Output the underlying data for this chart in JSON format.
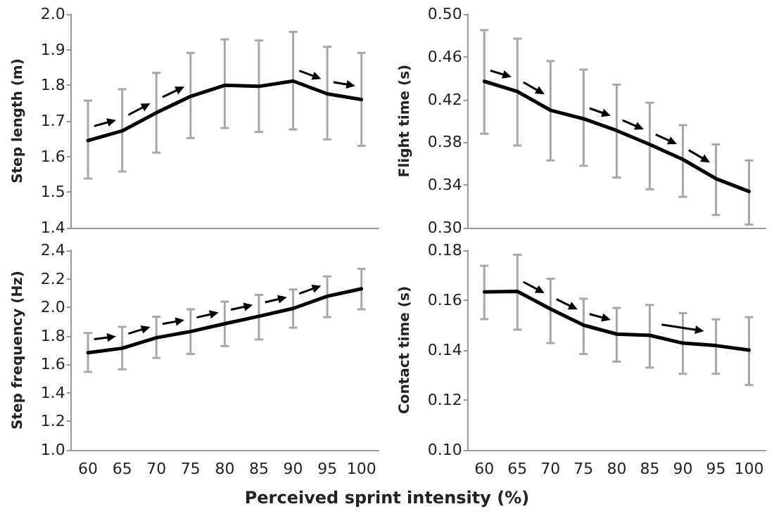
{
  "chart_data": [
    {
      "type": "line",
      "ylabel": "Step length (m)",
      "categories": [
        "60",
        "65",
        "70",
        "75",
        "80",
        "85",
        "90",
        "95",
        "100"
      ],
      "series": [
        {
          "color": "#000000",
          "values": [
            1.645,
            1.672,
            1.723,
            1.769,
            1.8,
            1.797,
            1.812,
            1.776,
            1.76
          ],
          "errors": [
            [
              1.538,
              1.757
            ],
            [
              1.558,
              1.789
            ],
            [
              1.611,
              1.835
            ],
            [
              1.652,
              1.891
            ],
            [
              1.68,
              1.929
            ],
            [
              1.669,
              1.926
            ],
            [
              1.676,
              1.95
            ],
            [
              1.648,
              1.908
            ],
            [
              1.63,
              1.891
            ]
          ]
        }
      ],
      "ylim": [
        1.4,
        2.0
      ],
      "yticks": [
        1.4,
        1.5,
        1.6,
        1.7,
        1.8,
        1.9,
        {
          "value": 2,
          "label": "2.0"
        }
      ],
      "tick_labels": "y",
      "marker": "none",
      "line_style": "solid"
    },
    {
      "type": "line",
      "ylabel": "Flight time (s)",
      "categories": [
        "60",
        "65",
        "70",
        "75",
        "80",
        "85",
        "90",
        "95",
        "100"
      ],
      "series": [
        {
          "color": "#000000",
          "values": [
            0.437,
            0.4275,
            0.41,
            0.402,
            0.391,
            0.378,
            0.364,
            0.346,
            0.334
          ],
          "errors": [
            [
              0.388,
              0.485
            ],
            [
              0.377,
              0.477
            ],
            [
              0.363,
              0.456
            ],
            [
              0.358,
              0.448
            ],
            [
              0.347,
              0.434
            ],
            [
              0.336,
              0.417
            ],
            [
              0.329,
              0.396
            ],
            [
              0.312,
              0.378
            ],
            [
              0.303,
              0.363
            ]
          ]
        }
      ],
      "ylim": [
        0.3,
        0.5
      ],
      "yticks": [
        {
          "value": 0.3,
          "label": "0.30"
        },
        0.34,
        0.38,
        0.42,
        0.46,
        {
          "value": 0.5,
          "label": "0.50"
        }
      ],
      "tick_labels": "y",
      "marker": "none",
      "line_style": "solid"
    },
    {
      "type": "line",
      "ylabel": "Step frequency (Hz)",
      "xlabel": "Perceived sprint intensity (%)",
      "categories": [
        "60",
        "65",
        "70",
        "75",
        "80",
        "85",
        "90",
        "95",
        "100"
      ],
      "series": [
        {
          "color": "#000000",
          "values": [
            1.682,
            1.713,
            1.787,
            1.83,
            1.885,
            1.937,
            1.992,
            2.078,
            2.13
          ],
          "errors": [
            [
              1.547,
              1.82
            ],
            [
              1.565,
              1.863
            ],
            [
              1.645,
              1.934
            ],
            [
              1.673,
              1.986
            ],
            [
              1.728,
              2.04
            ],
            [
              1.774,
              2.087
            ],
            [
              1.857,
              2.125
            ],
            [
              1.931,
              2.217
            ],
            [
              1.986,
              2.27
            ]
          ]
        }
      ],
      "ylim": [
        1.0,
        2.4
      ],
      "yticks": [
        {
          "value": 1,
          "label": "1.0"
        },
        1.2,
        1.4,
        1.6,
        1.8,
        {
          "value": 2,
          "label": "2.0"
        },
        2.2,
        2.4
      ],
      "marker": "none",
      "line_style": "solid"
    },
    {
      "type": "line",
      "ylabel": "Contact time (s)",
      "categories": [
        "60",
        "65",
        "70",
        "75",
        "80",
        "85",
        "90",
        "95",
        "100"
      ],
      "series": [
        {
          "color": "#000000",
          "values": [
            0.1633,
            0.1635,
            0.1565,
            0.15,
            0.1464,
            0.1459,
            0.1428,
            0.1418,
            0.14
          ],
          "errors": [
            [
              0.1524,
              0.1738
            ],
            [
              0.1482,
              0.1782
            ],
            [
              0.1428,
              0.1686
            ],
            [
              0.1384,
              0.1606
            ],
            [
              0.1354,
              0.1569
            ],
            [
              0.133,
              0.1581
            ],
            [
              0.1305,
              0.1548
            ],
            [
              0.1305,
              0.1523
            ],
            [
              0.126,
              0.1532
            ]
          ]
        }
      ],
      "ylim": [
        0.1,
        0.18
      ],
      "yticks": [
        {
          "value": 0.1,
          "label": "0.10"
        },
        0.12,
        0.14,
        0.16,
        0.18
      ],
      "marker": "none",
      "line_style": "solid"
    }
  ]
}
